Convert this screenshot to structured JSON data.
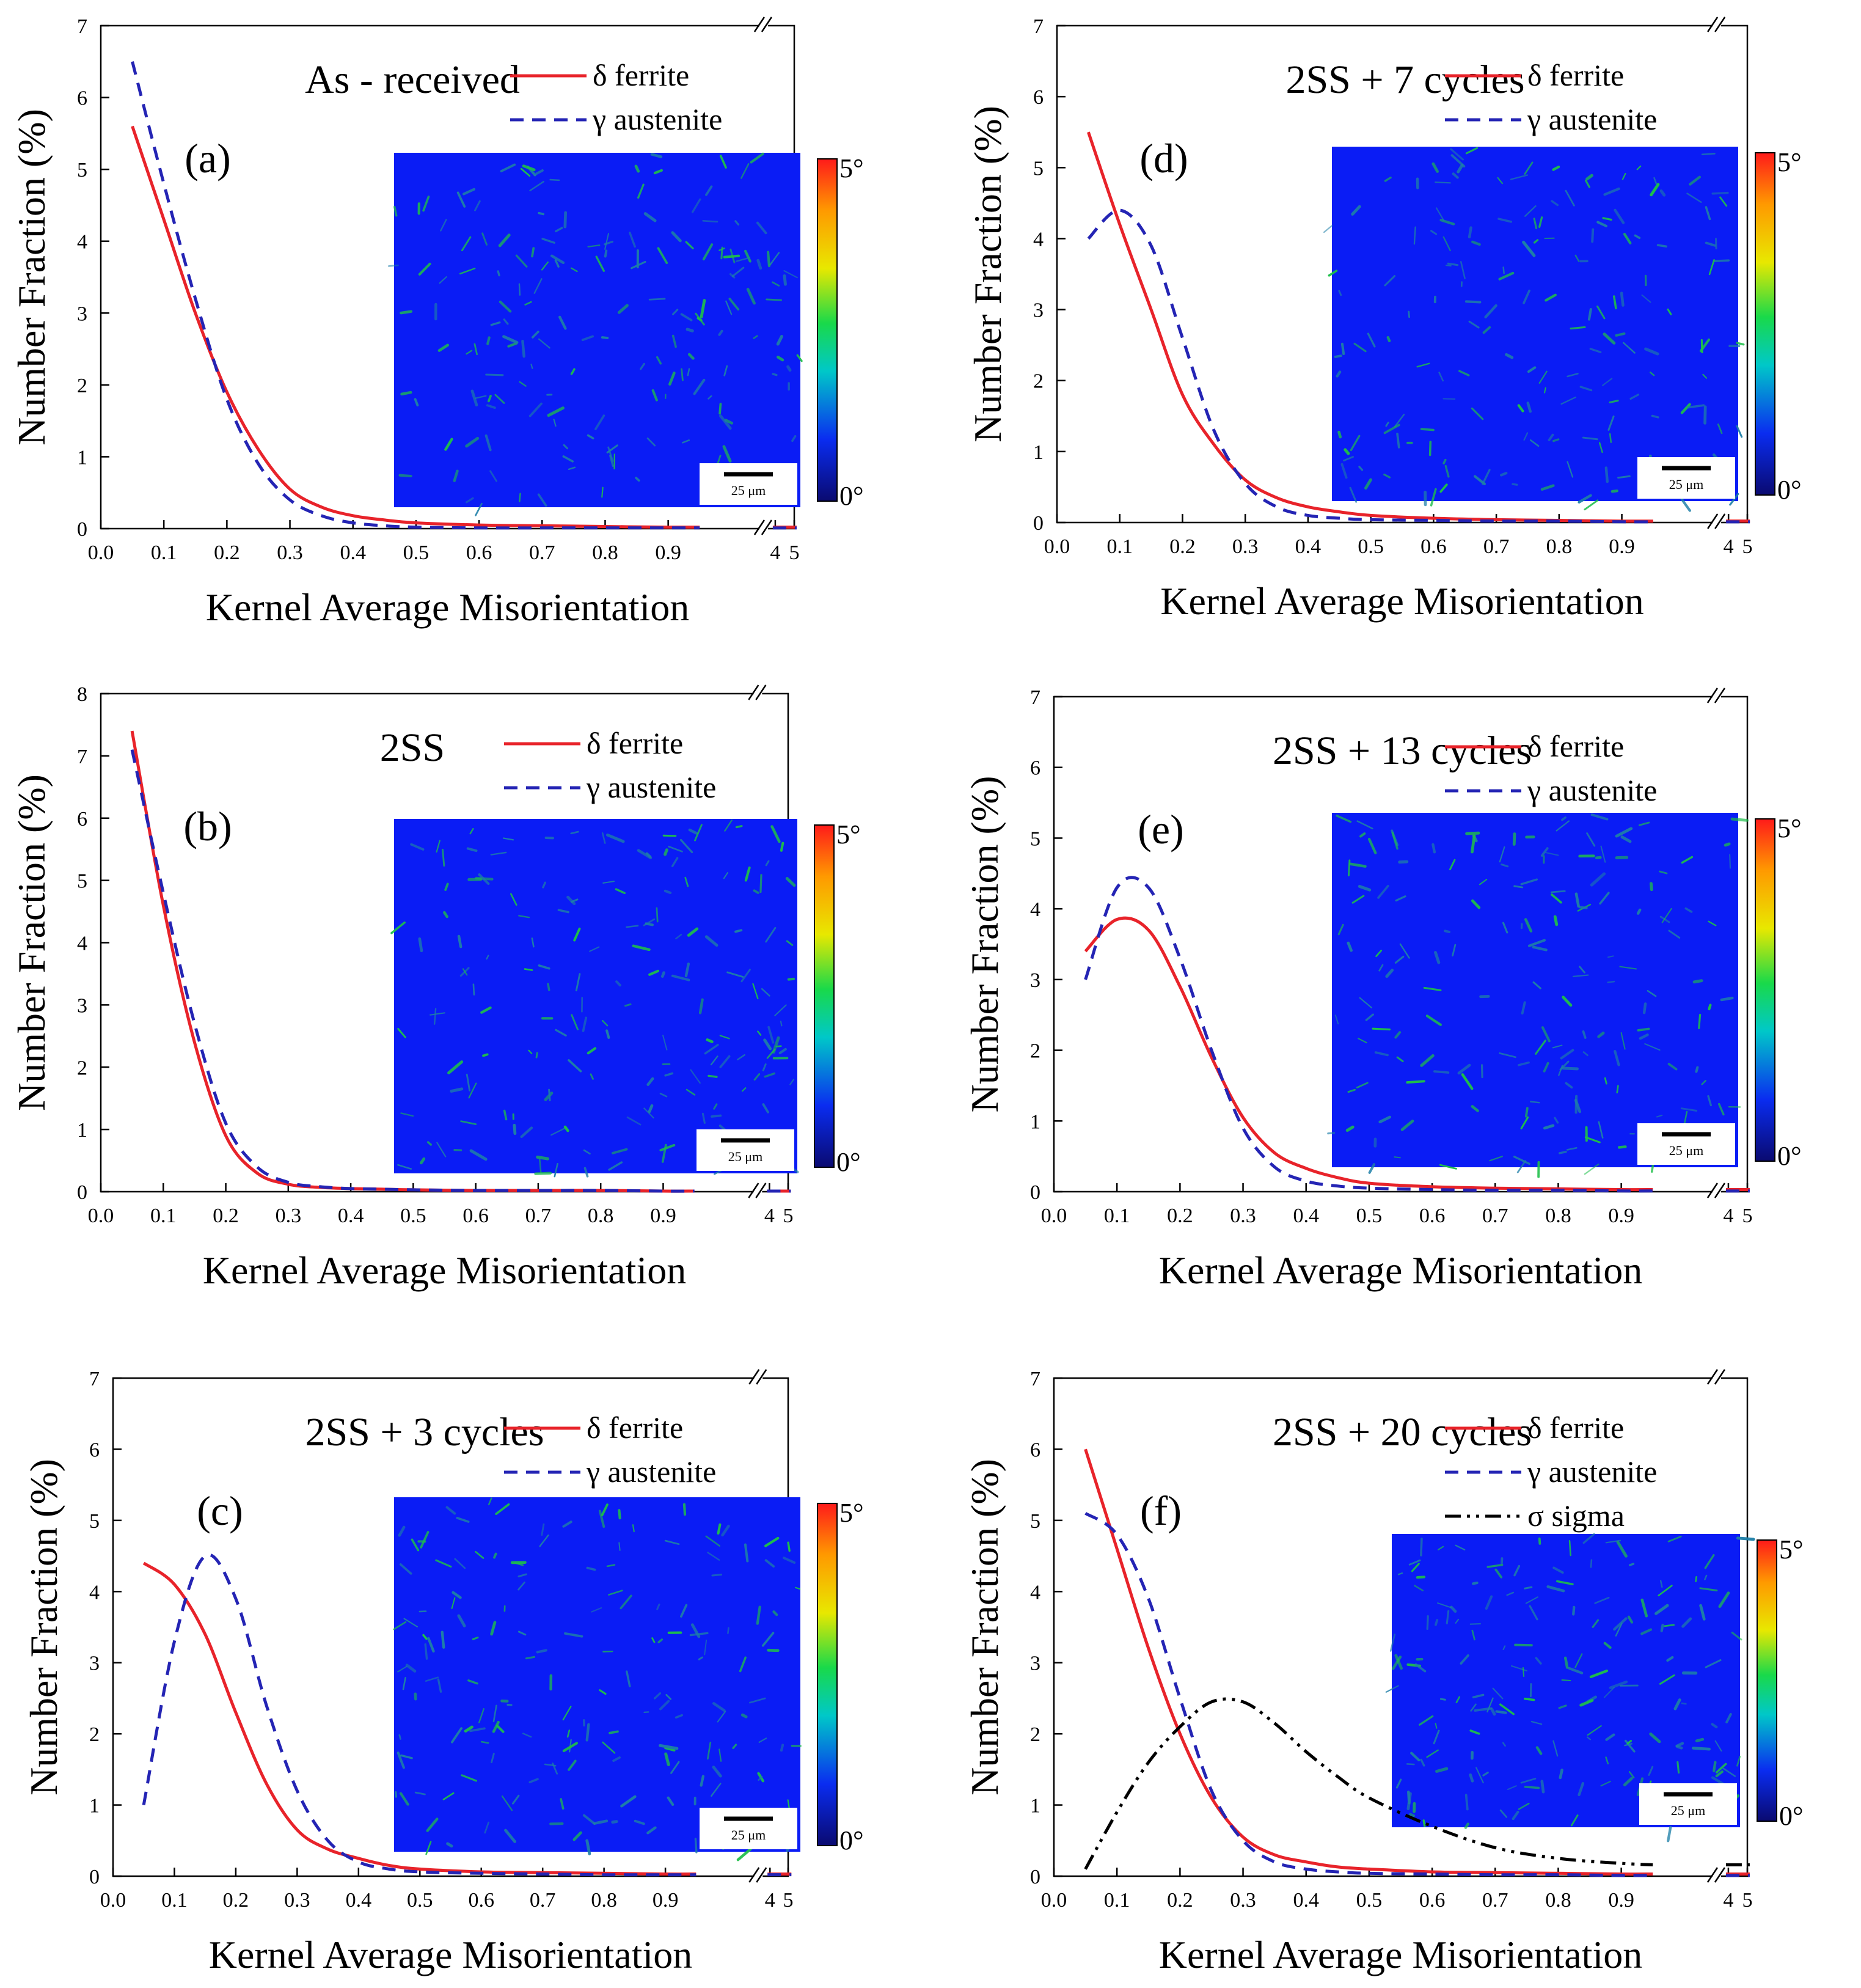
{
  "figure": {
    "x_axis_label": "Kernel Average Misorientation",
    "y_axis_label": "Number Fraction (%)",
    "x_tick_labels": [
      "0.0",
      "0.1",
      "0.2",
      "0.3",
      "0.4",
      "0.5",
      "0.6",
      "0.7",
      "0.8",
      "0.9"
    ],
    "x_break_tick_labels": [
      "4",
      "5"
    ],
    "colorbar": {
      "max_label": "5°",
      "min_label": "0°"
    },
    "scale_bar_label": "25 μm",
    "colors": {
      "ferrite": "#e8232a",
      "austenite": "#2424b4",
      "sigma": "#000000",
      "map_background": "#0a1cf5",
      "map_grain": "#1fbf4a"
    }
  },
  "chart_data": [
    {
      "type": "line",
      "letter": "(a)",
      "title": "As - received",
      "xlabel": "Kernel Average Misorientation",
      "ylabel": "Number Fraction (%)",
      "xlim": [
        0,
        1.1
      ],
      "ylim": [
        0,
        7
      ],
      "y_ticks": [
        0,
        1,
        2,
        3,
        4,
        5,
        6,
        7
      ],
      "legend": [
        "δ ferrite",
        "γ austenite"
      ],
      "x": [
        0.05,
        0.1,
        0.15,
        0.2,
        0.25,
        0.3,
        0.35,
        0.4,
        0.45,
        0.5,
        0.6,
        0.7,
        0.8,
        0.9,
        0.95
      ],
      "series": [
        {
          "name": "δ ferrite",
          "values": [
            5.6,
            4.3,
            3.0,
            1.9,
            1.1,
            0.55,
            0.3,
            0.18,
            0.12,
            0.08,
            0.05,
            0.04,
            0.03,
            0.02,
            0.02
          ]
        },
        {
          "name": "γ austenite",
          "values": [
            6.5,
            4.8,
            3.2,
            1.8,
            0.9,
            0.4,
            0.18,
            0.08,
            0.04,
            0.02,
            0.01,
            0.01,
            0.01,
            0.01,
            0.01
          ]
        }
      ]
    },
    {
      "type": "line",
      "letter": "(b)",
      "title": "2SS",
      "xlabel": "Kernel Average Misorientation",
      "ylabel": "Number Fraction (%)",
      "xlim": [
        0,
        1.1
      ],
      "ylim": [
        0,
        8
      ],
      "y_ticks": [
        0,
        1,
        2,
        3,
        4,
        5,
        6,
        7,
        8
      ],
      "legend": [
        "δ ferrite",
        "γ austenite"
      ],
      "x": [
        0.05,
        0.1,
        0.15,
        0.2,
        0.25,
        0.3,
        0.35,
        0.4,
        0.45,
        0.5,
        0.6,
        0.7,
        0.8,
        0.9,
        0.95
      ],
      "series": [
        {
          "name": "δ ferrite",
          "values": [
            7.4,
            4.6,
            2.4,
            0.9,
            0.3,
            0.12,
            0.07,
            0.05,
            0.04,
            0.03,
            0.02,
            0.02,
            0.02,
            0.01,
            0.01
          ]
        },
        {
          "name": "γ austenite",
          "values": [
            7.1,
            4.8,
            2.7,
            1.1,
            0.4,
            0.15,
            0.08,
            0.05,
            0.04,
            0.03,
            0.02,
            0.02,
            0.02,
            0.01,
            0.01
          ]
        }
      ]
    },
    {
      "type": "line",
      "letter": "(c)",
      "title": "2SS + 3 cycles",
      "xlabel": "Kernel Average Misorientation",
      "ylabel": "Number Fraction (%)",
      "xlim": [
        0,
        1.1
      ],
      "ylim": [
        0,
        7
      ],
      "y_ticks": [
        0,
        1,
        2,
        3,
        4,
        5,
        6,
        7
      ],
      "legend": [
        "δ ferrite",
        "γ austenite"
      ],
      "x": [
        0.05,
        0.1,
        0.15,
        0.2,
        0.25,
        0.3,
        0.35,
        0.4,
        0.45,
        0.5,
        0.6,
        0.7,
        0.8,
        0.9,
        0.95
      ],
      "series": [
        {
          "name": "δ ferrite",
          "values": [
            4.4,
            4.1,
            3.4,
            2.3,
            1.3,
            0.65,
            0.38,
            0.25,
            0.15,
            0.1,
            0.06,
            0.05,
            0.04,
            0.03,
            0.03
          ]
        },
        {
          "name": "γ austenite",
          "values": [
            1.0,
            3.3,
            4.5,
            3.9,
            2.4,
            1.2,
            0.5,
            0.2,
            0.1,
            0.06,
            0.04,
            0.03,
            0.02,
            0.02,
            0.02
          ]
        }
      ]
    },
    {
      "type": "line",
      "letter": "(d)",
      "title": "2SS + 7 cycles",
      "xlabel": "Kernel Average Misorientation",
      "ylabel": "Number Fraction (%)",
      "xlim": [
        0,
        1.1
      ],
      "ylim": [
        0,
        7
      ],
      "y_ticks": [
        0,
        1,
        2,
        3,
        4,
        5,
        6,
        7
      ],
      "legend": [
        "δ ferrite",
        "γ austenite"
      ],
      "x": [
        0.05,
        0.1,
        0.15,
        0.2,
        0.25,
        0.3,
        0.35,
        0.4,
        0.45,
        0.5,
        0.6,
        0.7,
        0.8,
        0.9,
        0.95
      ],
      "series": [
        {
          "name": "δ ferrite",
          "values": [
            5.5,
            4.2,
            3.0,
            1.8,
            1.1,
            0.6,
            0.35,
            0.22,
            0.15,
            0.1,
            0.06,
            0.04,
            0.03,
            0.02,
            0.02
          ]
        },
        {
          "name": "γ austenite",
          "values": [
            4.0,
            4.4,
            3.9,
            2.6,
            1.3,
            0.55,
            0.22,
            0.1,
            0.06,
            0.04,
            0.03,
            0.02,
            0.02,
            0.01,
            0.01
          ]
        }
      ]
    },
    {
      "type": "line",
      "letter": "(e)",
      "title": "2SS + 13 cycles",
      "xlabel": "Kernel Average Misorientation",
      "ylabel": "Number Fraction (%)",
      "xlim": [
        0,
        1.1
      ],
      "ylim": [
        0,
        7
      ],
      "y_ticks": [
        0,
        1,
        2,
        3,
        4,
        5,
        6,
        7
      ],
      "legend": [
        "δ ferrite",
        "γ austenite"
      ],
      "x": [
        0.05,
        0.1,
        0.15,
        0.2,
        0.25,
        0.3,
        0.35,
        0.4,
        0.45,
        0.5,
        0.6,
        0.7,
        0.8,
        0.9,
        0.95
      ],
      "series": [
        {
          "name": "δ ferrite",
          "values": [
            3.4,
            3.85,
            3.7,
            2.9,
            1.9,
            1.05,
            0.55,
            0.33,
            0.2,
            0.12,
            0.07,
            0.05,
            0.04,
            0.03,
            0.03
          ]
        },
        {
          "name": "γ austenite",
          "values": [
            3.0,
            4.3,
            4.3,
            3.3,
            2.0,
            0.9,
            0.35,
            0.15,
            0.08,
            0.05,
            0.03,
            0.02,
            0.02,
            0.01,
            0.01
          ]
        }
      ]
    },
    {
      "type": "line",
      "letter": "(f)",
      "title": "2SS + 20 cycles",
      "xlabel": "Kernel Average Misorientation",
      "ylabel": "Number Fraction (%)",
      "xlim": [
        0,
        1.1
      ],
      "ylim": [
        0,
        7
      ],
      "y_ticks": [
        0,
        1,
        2,
        3,
        4,
        5,
        6,
        7
      ],
      "legend": [
        "δ ferrite",
        "γ austenite",
        "σ sigma"
      ],
      "x": [
        0.05,
        0.1,
        0.15,
        0.2,
        0.25,
        0.3,
        0.35,
        0.4,
        0.45,
        0.5,
        0.6,
        0.7,
        0.8,
        0.9,
        0.95
      ],
      "series": [
        {
          "name": "δ ferrite",
          "values": [
            6.0,
            4.6,
            3.2,
            2.0,
            1.1,
            0.55,
            0.3,
            0.2,
            0.13,
            0.1,
            0.06,
            0.05,
            0.04,
            0.03,
            0.03
          ]
        },
        {
          "name": "γ austenite",
          "values": [
            5.1,
            4.8,
            3.9,
            2.5,
            1.2,
            0.5,
            0.2,
            0.1,
            0.06,
            0.04,
            0.03,
            0.02,
            0.02,
            0.01,
            0.01
          ]
        },
        {
          "name": "σ sigma",
          "values": [
            0.1,
            0.9,
            1.6,
            2.1,
            2.45,
            2.45,
            2.15,
            1.75,
            1.4,
            1.1,
            0.7,
            0.4,
            0.25,
            0.18,
            0.16
          ]
        }
      ]
    }
  ]
}
